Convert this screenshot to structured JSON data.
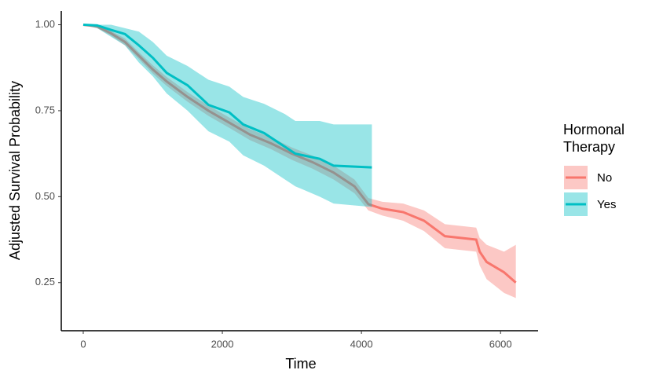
{
  "chart_data": {
    "type": "step",
    "x_label": "Time",
    "y_label": "Adjusted Survival Probability",
    "legend_title": "Hormonal Therapy",
    "xlim": [
      -316,
      6540
    ],
    "ylim": [
      0.11,
      1.04
    ],
    "xticks": [
      0,
      2000,
      4000,
      6000
    ],
    "yticks": [
      {
        "value": 0.25,
        "label": "0.25"
      },
      {
        "value": 0.5,
        "label": "0.50"
      },
      {
        "value": 0.75,
        "label": "0.75"
      },
      {
        "value": 1,
        "label": "1.00"
      }
    ],
    "series": [
      {
        "name": "No",
        "color": "#F8766D",
        "x": [
          0,
          200,
          400,
          600,
          800,
          1000,
          1200,
          1500,
          1800,
          2100,
          2400,
          2700,
          3000,
          3300,
          3600,
          3900,
          4100,
          4300,
          4600,
          4900,
          5200,
          5650,
          5700,
          5800,
          6050,
          6220
        ],
        "values": [
          1.0,
          0.995,
          0.975,
          0.95,
          0.91,
          0.87,
          0.835,
          0.79,
          0.75,
          0.715,
          0.68,
          0.655,
          0.625,
          0.6,
          0.57,
          0.53,
          0.478,
          0.465,
          0.455,
          0.43,
          0.385,
          0.375,
          0.34,
          0.31,
          0.28,
          0.25
        ],
        "lower": [
          1.0,
          0.99,
          0.968,
          0.94,
          0.9,
          0.858,
          0.822,
          0.776,
          0.735,
          0.7,
          0.664,
          0.638,
          0.607,
          0.581,
          0.55,
          0.51,
          0.46,
          0.445,
          0.43,
          0.4,
          0.35,
          0.34,
          0.3,
          0.26,
          0.22,
          0.205
        ],
        "upper": [
          1.0,
          1.0,
          0.982,
          0.96,
          0.92,
          0.882,
          0.848,
          0.804,
          0.765,
          0.73,
          0.696,
          0.672,
          0.643,
          0.619,
          0.59,
          0.55,
          0.496,
          0.485,
          0.48,
          0.46,
          0.42,
          0.41,
          0.38,
          0.36,
          0.34,
          0.36
        ]
      },
      {
        "name": "Yes",
        "color": "#00BFC4",
        "x": [
          0,
          200,
          400,
          600,
          800,
          1000,
          1200,
          1500,
          1800,
          2100,
          2300,
          2600,
          2900,
          3050,
          3400,
          3600,
          4150
        ],
        "values": [
          1.0,
          0.998,
          0.985,
          0.973,
          0.94,
          0.904,
          0.86,
          0.824,
          0.767,
          0.745,
          0.71,
          0.685,
          0.645,
          0.625,
          0.61,
          0.59,
          0.585
        ],
        "lower": [
          1.0,
          0.99,
          0.965,
          0.94,
          0.89,
          0.85,
          0.8,
          0.75,
          0.69,
          0.66,
          0.62,
          0.59,
          0.55,
          0.53,
          0.5,
          0.48,
          0.47
        ],
        "upper": [
          1.0,
          1.0,
          1.0,
          0.99,
          0.98,
          0.95,
          0.91,
          0.88,
          0.84,
          0.82,
          0.79,
          0.77,
          0.74,
          0.72,
          0.72,
          0.71,
          0.71
        ]
      }
    ]
  }
}
